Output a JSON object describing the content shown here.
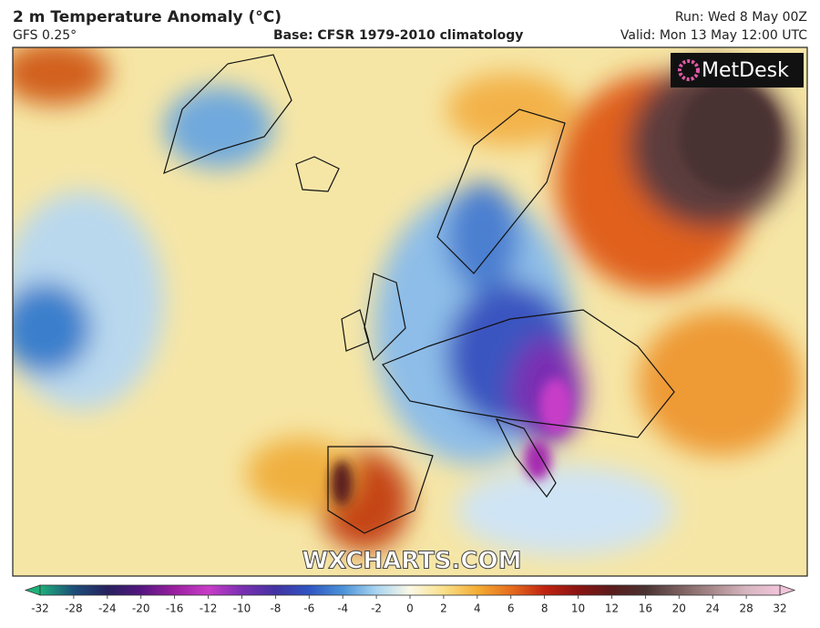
{
  "header": {
    "title": "2 m Temperature Anomaly (°C)",
    "model": "GFS 0.25°",
    "base": "Base: CFSR 1979-2010 climatology",
    "run": "Run: Wed 8 May 00Z",
    "valid": "Valid: Mon 13 May 12:00 UTC"
  },
  "map": {
    "logo": "MetDesk",
    "watermark": "WXCHARTS.COM"
  },
  "colorbar": {
    "ticks": [
      -32,
      -28,
      -24,
      -20,
      -16,
      -12,
      -10,
      -8,
      -6,
      -4,
      -2,
      0,
      2,
      4,
      6,
      8,
      10,
      12,
      16,
      20,
      24,
      28,
      32
    ],
    "colors": [
      "#1fb07a",
      "#1c4f78",
      "#26215e",
      "#541680",
      "#9a1fa0",
      "#c83cc8",
      "#7a2fb2",
      "#4232a2",
      "#2f55c2",
      "#4b92d8",
      "#a9d5f0",
      "#fbf8e6",
      "#f9e08a",
      "#f4ad34",
      "#e66d1f",
      "#c02410",
      "#8a1412",
      "#5a1c1c",
      "#4a3232",
      "#7a5e5e",
      "#a88a8c",
      "#d6b6c0",
      "#f2c4da"
    ]
  }
}
